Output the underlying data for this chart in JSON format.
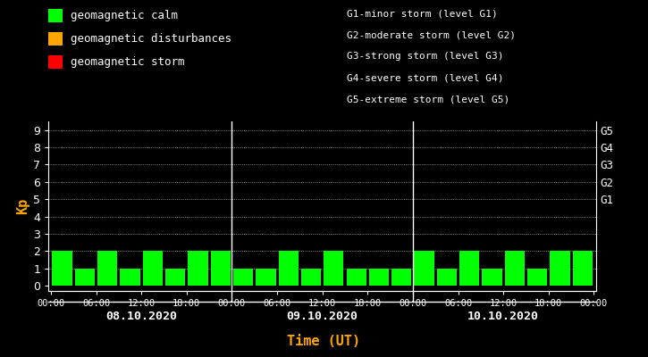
{
  "bg_color": "#000000",
  "fg_color": "#ffffff",
  "title_color": "#ffa500",
  "bar_color_calm": "#00ff00",
  "bar_color_disturb": "#ffa500",
  "bar_color_storm": "#ff0000",
  "kp_values": [
    2,
    1,
    2,
    1,
    2,
    1,
    2,
    2,
    1,
    1,
    2,
    1,
    2,
    1,
    1,
    1,
    2,
    1,
    2,
    1,
    2,
    1,
    2,
    2
  ],
  "dates": [
    "08.10.2020",
    "09.10.2020",
    "10.10.2020"
  ],
  "xlabel": "Time (UT)",
  "ylabel": "Kp",
  "yticks": [
    0,
    1,
    2,
    3,
    4,
    5,
    6,
    7,
    8,
    9
  ],
  "ylim": [
    -0.3,
    9.5
  ],
  "g_labels": [
    "G5",
    "G4",
    "G3",
    "G2",
    "G1"
  ],
  "g_yvals": [
    9,
    8,
    7,
    6,
    5
  ],
  "legend_calm": "geomagnetic calm",
  "legend_disturb": "geomagnetic disturbances",
  "legend_storm": "geomagnetic storm",
  "g_text_lines": [
    "G1-minor storm (level G1)",
    "G2-moderate storm (level G2)",
    "G3-strong storm (level G3)",
    "G4-severe storm (level G4)",
    "G5-extreme storm (level G5)"
  ],
  "xtick_labels_per_day": [
    "00:00",
    "06:00",
    "12:00",
    "18:00",
    "00:00"
  ],
  "dot_color": "#ffffff",
  "separator_color": "#ffffff"
}
